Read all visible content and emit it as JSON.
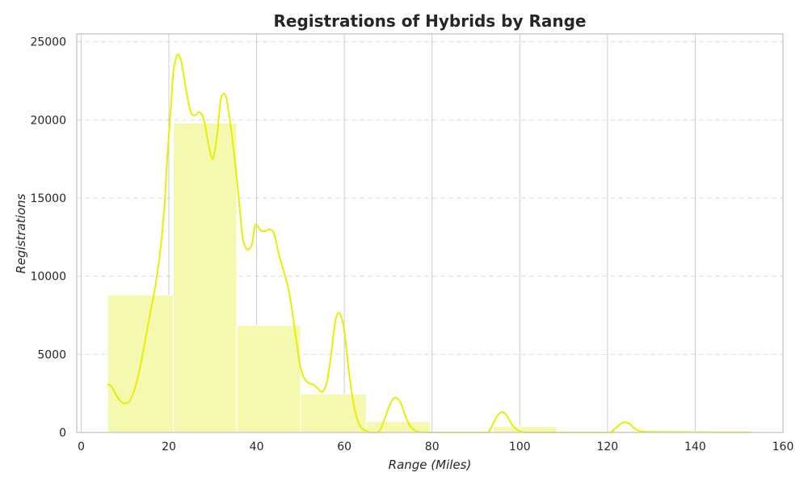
{
  "chart_data": {
    "type": "bar",
    "title": "Registrations of Hybrids by Range",
    "xlabel": "Range (Miles)",
    "ylabel": "Registrations",
    "xlim": [
      -1,
      160
    ],
    "ylim": [
      0,
      25500
    ],
    "xticks": [
      0,
      20,
      40,
      60,
      80,
      100,
      120,
      140,
      160
    ],
    "yticks": [
      0,
      5000,
      10000,
      15000,
      20000,
      25000
    ],
    "grid": "dashed horizontal lines, solid vertical lines",
    "bar_color": "#f5f9af",
    "line_color": "#e8ee00",
    "bins": [
      {
        "start": 6,
        "end": 21,
        "value": 8800
      },
      {
        "start": 21,
        "end": 35.5,
        "value": 19800
      },
      {
        "start": 35.5,
        "end": 50,
        "value": 6850
      },
      {
        "start": 50,
        "end": 65,
        "value": 2450
      },
      {
        "start": 65,
        "end": 79.5,
        "value": 700
      },
      {
        "start": 79.5,
        "end": 94,
        "value": 0
      },
      {
        "start": 94,
        "end": 108.5,
        "value": 380
      },
      {
        "start": 108.5,
        "end": 123,
        "value": 0
      },
      {
        "start": 123,
        "end": 138,
        "value": 80
      },
      {
        "start": 138,
        "end": 153,
        "value": 60
      }
    ],
    "kde": [
      [
        6,
        3100
      ],
      [
        7,
        2900
      ],
      [
        8,
        2400
      ],
      [
        9,
        2000
      ],
      [
        10,
        1850
      ],
      [
        11,
        2000
      ],
      [
        12,
        2600
      ],
      [
        13,
        3600
      ],
      [
        14,
        5000
      ],
      [
        15,
        6500
      ],
      [
        16,
        8000
      ],
      [
        17,
        9500
      ],
      [
        18,
        11500
      ],
      [
        19,
        14500
      ],
      [
        19.5,
        17000
      ],
      [
        20,
        19000
      ],
      [
        20.5,
        21000
      ],
      [
        21,
        23000
      ],
      [
        21.5,
        23800
      ],
      [
        22,
        24200
      ],
      [
        22.5,
        24000
      ],
      [
        23,
        23500
      ],
      [
        24,
        21800
      ],
      [
        25,
        20500
      ],
      [
        26,
        20300
      ],
      [
        27,
        20500
      ],
      [
        28,
        20000
      ],
      [
        29,
        18500
      ],
      [
        30,
        17500
      ],
      [
        31,
        19000
      ],
      [
        31.5,
        20500
      ],
      [
        32,
        21500
      ],
      [
        33,
        21500
      ],
      [
        34,
        19800
      ],
      [
        35,
        17500
      ],
      [
        36,
        14800
      ],
      [
        36.5,
        13300
      ],
      [
        37,
        12200
      ],
      [
        38,
        11700
      ],
      [
        39,
        12100
      ],
      [
        39.5,
        13100
      ],
      [
        40,
        13300
      ],
      [
        41,
        12900
      ],
      [
        42,
        12900
      ],
      [
        43,
        13000
      ],
      [
        44,
        12700
      ],
      [
        45,
        11500
      ],
      [
        46,
        10500
      ],
      [
        47,
        9500
      ],
      [
        48,
        8000
      ],
      [
        49,
        6000
      ],
      [
        50,
        4200
      ],
      [
        51,
        3400
      ],
      [
        52,
        3150
      ],
      [
        53,
        3050
      ],
      [
        54,
        2800
      ],
      [
        55,
        2600
      ],
      [
        56,
        3200
      ],
      [
        57,
        5000
      ],
      [
        58,
        7200
      ],
      [
        59,
        7600
      ],
      [
        60,
        6500
      ],
      [
        61,
        4000
      ],
      [
        62,
        2000
      ],
      [
        63,
        800
      ],
      [
        64,
        250
      ],
      [
        65,
        100
      ],
      [
        66,
        0
      ],
      [
        67,
        0
      ],
      [
        68,
        100
      ],
      [
        69,
        700
      ],
      [
        70,
        1500
      ],
      [
        71,
        2100
      ],
      [
        72,
        2200
      ],
      [
        73,
        1800
      ],
      [
        74,
        1000
      ],
      [
        75,
        400
      ],
      [
        76,
        150
      ],
      [
        77,
        30
      ],
      [
        80,
        0
      ],
      [
        92,
        0
      ],
      [
        93,
        100
      ],
      [
        94,
        600
      ],
      [
        95,
        1100
      ],
      [
        96,
        1300
      ],
      [
        97,
        1100
      ],
      [
        98,
        600
      ],
      [
        99,
        250
      ],
      [
        100,
        80
      ],
      [
        101,
        10
      ],
      [
        103,
        0
      ],
      [
        120,
        0
      ],
      [
        121,
        100
      ],
      [
        122,
        300
      ],
      [
        123,
        550
      ],
      [
        124,
        650
      ],
      [
        125,
        550
      ],
      [
        126,
        300
      ],
      [
        127,
        120
      ],
      [
        128,
        60
      ],
      [
        130,
        40
      ],
      [
        135,
        30
      ],
      [
        140,
        20
      ],
      [
        145,
        15
      ],
      [
        150,
        10
      ],
      [
        153,
        5
      ]
    ]
  }
}
